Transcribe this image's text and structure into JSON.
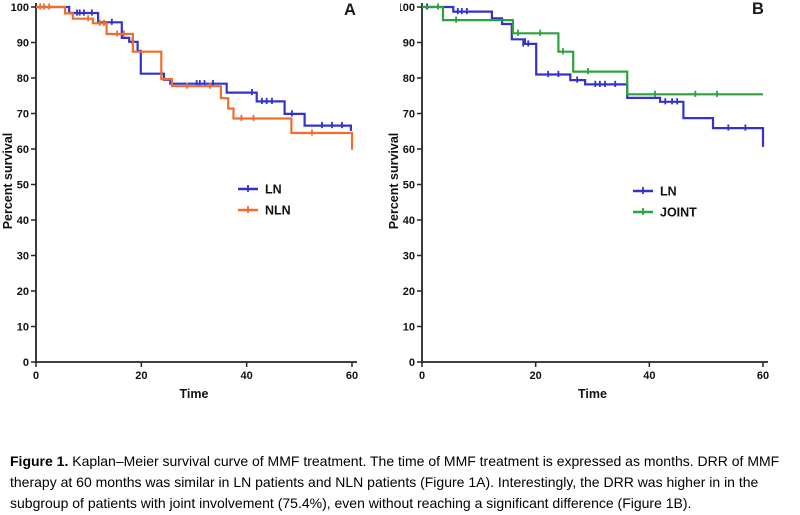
{
  "figure": {
    "caption": {
      "label": "Figure 1.",
      "text": "Kaplan–Meier survival curve of MMF treatment. The time of MMF treatment is expressed as months. DRR of MMF therapy at 60 months was similar in LN patients and NLN patients (Figure 1A). Interestingly, the DRR was higher in in the subgroup of patients with joint involvement (75.4%), even without reaching a significant difference (Figure 1B)."
    }
  },
  "chart_data": [
    {
      "type": "line",
      "subtype": "kaplan-meier-step",
      "panel_label": "A",
      "xlabel": "Time",
      "ylabel": "Percent survival",
      "xlim": [
        0,
        60
      ],
      "ylim": [
        0,
        100
      ],
      "xticks": [
        0,
        20,
        40,
        60
      ],
      "yticks": [
        0,
        10,
        20,
        30,
        40,
        50,
        60,
        70,
        80,
        90,
        100
      ],
      "grid": false,
      "legend_position": "center-right",
      "series": [
        {
          "name": "LN",
          "color": "#3333cc",
          "steps": [
            [
              0,
              100
            ],
            [
              6.3,
              98.3
            ],
            [
              11.8,
              95.7
            ],
            [
              16.3,
              91.3
            ],
            [
              17.7,
              90.2
            ],
            [
              19.3,
              87.6
            ],
            [
              19.9,
              81.2
            ],
            [
              24.3,
              79.5
            ],
            [
              25.5,
              78.4
            ],
            [
              36.2,
              75.9
            ],
            [
              41.9,
              73.4
            ],
            [
              47.2,
              69.9
            ],
            [
              51,
              66.6
            ],
            [
              59.8,
              65.4
            ]
          ],
          "censors": [
            [
              7.8,
              98.3
            ],
            [
              8.3,
              98.3
            ],
            [
              9.1,
              98.3
            ],
            [
              10.6,
              98.3
            ],
            [
              14.4,
              95.7
            ],
            [
              18.3,
              90.2
            ],
            [
              30.5,
              78.4
            ],
            [
              31.1,
              78.4
            ],
            [
              32,
              78.4
            ],
            [
              33.6,
              78.4
            ],
            [
              41,
              75.9
            ],
            [
              42.9,
              73.4
            ],
            [
              43.8,
              73.4
            ],
            [
              44.8,
              73.4
            ],
            [
              48.6,
              69.9
            ],
            [
              54.3,
              66.6
            ],
            [
              56.2,
              66.6
            ],
            [
              58.1,
              66.6
            ]
          ]
        },
        {
          "name": "NLN",
          "color": "#f06e2c",
          "steps": [
            [
              0,
              100
            ],
            [
              5.5,
              98.2
            ],
            [
              7,
              96.7
            ],
            [
              10.8,
              95.4
            ],
            [
              13.4,
              92.4
            ],
            [
              18.4,
              87.4
            ],
            [
              23.8,
              79.7
            ],
            [
              25.8,
              77.7
            ],
            [
              35.1,
              74.3
            ],
            [
              36.5,
              71.4
            ],
            [
              37.5,
              68.6
            ],
            [
              48.5,
              64.5
            ],
            [
              60,
              59.8
            ]
          ],
          "censors": [
            [
              0.8,
              100
            ],
            [
              1.5,
              100
            ],
            [
              2.5,
              100
            ],
            [
              9.9,
              96.7
            ],
            [
              12.1,
              95.4
            ],
            [
              12.9,
              95.4
            ],
            [
              15.4,
              92.4
            ],
            [
              16.7,
              92.4
            ],
            [
              28.7,
              77.7
            ],
            [
              33,
              77.7
            ],
            [
              39,
              68.6
            ],
            [
              41.3,
              68.6
            ],
            [
              52.4,
              64.5
            ]
          ]
        }
      ]
    },
    {
      "type": "line",
      "subtype": "kaplan-meier-step",
      "panel_label": "B",
      "xlabel": "Time",
      "ylabel": "Percent survival",
      "xlim": [
        0,
        60
      ],
      "ylim": [
        0,
        100
      ],
      "xticks": [
        0,
        20,
        40,
        60
      ],
      "yticks": [
        0,
        10,
        20,
        30,
        40,
        50,
        60,
        70,
        80,
        90,
        100
      ],
      "grid": false,
      "legend_position": "center-right",
      "series": [
        {
          "name": "LN",
          "color": "#3333cc",
          "steps": [
            [
              0,
              100
            ],
            [
              5.5,
              98.7
            ],
            [
              12.3,
              96.8
            ],
            [
              14.1,
              95.2
            ],
            [
              15.8,
              90.9
            ],
            [
              18.1,
              89.6
            ],
            [
              20.1,
              81.0
            ],
            [
              26.1,
              79.4
            ],
            [
              28.7,
              78.2
            ],
            [
              36.1,
              74.4
            ],
            [
              41.9,
              73.3
            ],
            [
              46,
              68.7
            ],
            [
              51.2,
              65.9
            ],
            [
              60,
              60.6
            ]
          ],
          "censors": [
            [
              0.9,
              100
            ],
            [
              6.3,
              98.7
            ],
            [
              7,
              98.7
            ],
            [
              7.9,
              98.7
            ],
            [
              17.8,
              89.6
            ],
            [
              18.7,
              89.6
            ],
            [
              22.2,
              81.0
            ],
            [
              24,
              81.0
            ],
            [
              27.3,
              79.4
            ],
            [
              30.5,
              78.2
            ],
            [
              31.3,
              78.2
            ],
            [
              32.2,
              78.2
            ],
            [
              34,
              78.2
            ],
            [
              42.8,
              73.3
            ],
            [
              44,
              73.3
            ],
            [
              44.9,
              73.3
            ],
            [
              53.9,
              65.9
            ],
            [
              56.9,
              65.9
            ]
          ]
        },
        {
          "name": "JOINT",
          "color": "#2fa13c",
          "steps": [
            [
              0,
              100
            ],
            [
              3.7,
              96.3
            ],
            [
              16,
              92.6
            ],
            [
              24,
              87.4
            ],
            [
              26.6,
              81.8
            ],
            [
              36.1,
              75.4
            ]
          ],
          "censors": [
            [
              2.8,
              100
            ],
            [
              6,
              96.3
            ],
            [
              16.9,
              92.6
            ],
            [
              20.8,
              92.6
            ],
            [
              24.8,
              87.4
            ],
            [
              29.2,
              81.8
            ],
            [
              41,
              75.4
            ],
            [
              48.1,
              75.4
            ],
            [
              51.9,
              75.4
            ]
          ]
        }
      ]
    }
  ]
}
